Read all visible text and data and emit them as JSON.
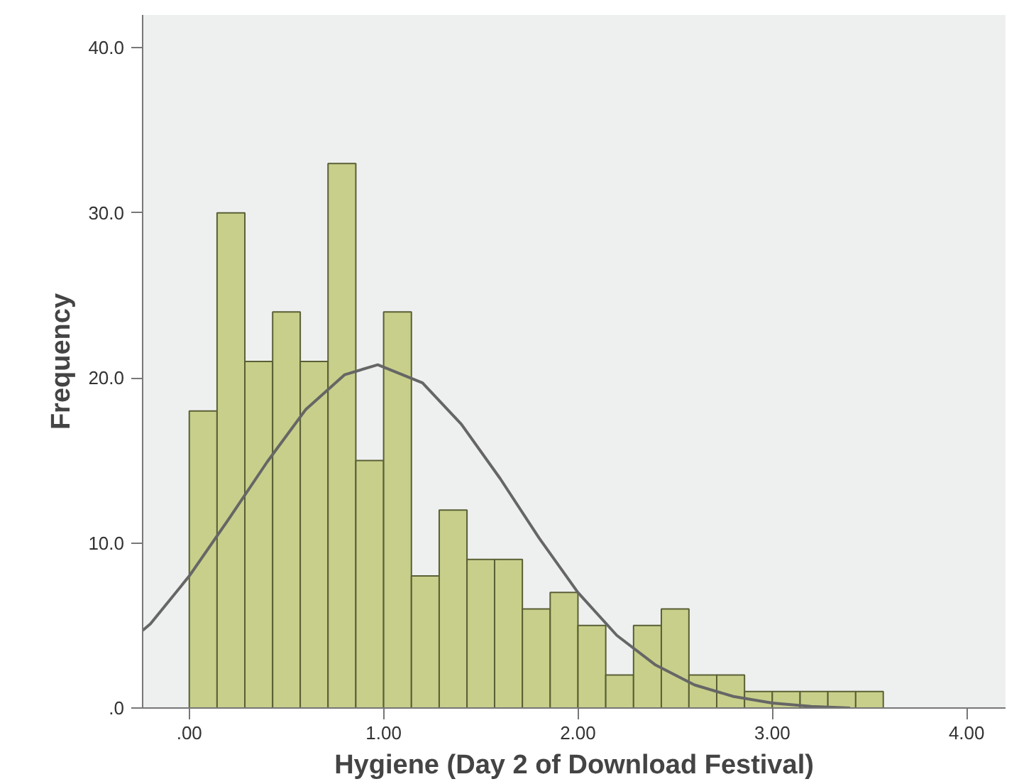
{
  "chart_data": {
    "type": "histogram",
    "xlabel": "Hygiene (Day 2 of Download Festival)",
    "ylabel": "Frequency",
    "bins": [
      0,
      0.143,
      0.286,
      0.429,
      0.571,
      0.714,
      0.857,
      1.0,
      1.143,
      1.286,
      1.429,
      1.571,
      1.714,
      1.857,
      2.0,
      2.143,
      2.286,
      2.429,
      2.571,
      2.714,
      2.857,
      3.0,
      3.143,
      3.286,
      3.429,
      3.571
    ],
    "values": [
      18,
      30,
      21,
      24,
      21,
      33,
      15,
      24,
      8,
      12,
      9,
      9,
      6,
      7,
      5,
      2,
      5,
      6,
      2,
      2,
      1,
      1,
      1,
      1,
      1
    ],
    "color": "#c8cf8a",
    "series": [
      {
        "type": "line",
        "color": "#666666",
        "x": [
          -0.24,
          -0.2,
          0,
          0.2,
          0.4,
          0.6,
          0.8,
          0.97,
          1.2,
          1.4,
          1.6,
          1.8,
          2.0,
          2.2,
          2.4,
          2.6,
          2.8,
          3.0,
          3.2,
          3.4
        ],
        "values": [
          4.7,
          5.1,
          8.0,
          11.4,
          14.9,
          18.1,
          20.2,
          20.8,
          19.7,
          17.2,
          13.9,
          10.3,
          7.0,
          4.4,
          2.6,
          1.4,
          0.7,
          0.3,
          0.1,
          0.0
        ]
      }
    ],
    "xlim": [
      -0.24,
      4.2
    ],
    "ylim": [
      0,
      42
    ],
    "xticks": [
      {
        "value": 0,
        "label": ".00"
      },
      {
        "value": 1,
        "label": "1.00"
      },
      {
        "value": 2,
        "label": "2.00"
      },
      {
        "value": 3,
        "label": "3.00"
      },
      {
        "value": 4,
        "label": "4.00"
      }
    ],
    "yticks": [
      {
        "value": 0,
        "label": ".0"
      },
      {
        "value": 10,
        "label": "10.0"
      },
      {
        "value": 20,
        "label": "20.0"
      },
      {
        "value": 30,
        "label": "30.0"
      },
      {
        "value": 40,
        "label": "40.0"
      }
    ],
    "grid": false
  }
}
